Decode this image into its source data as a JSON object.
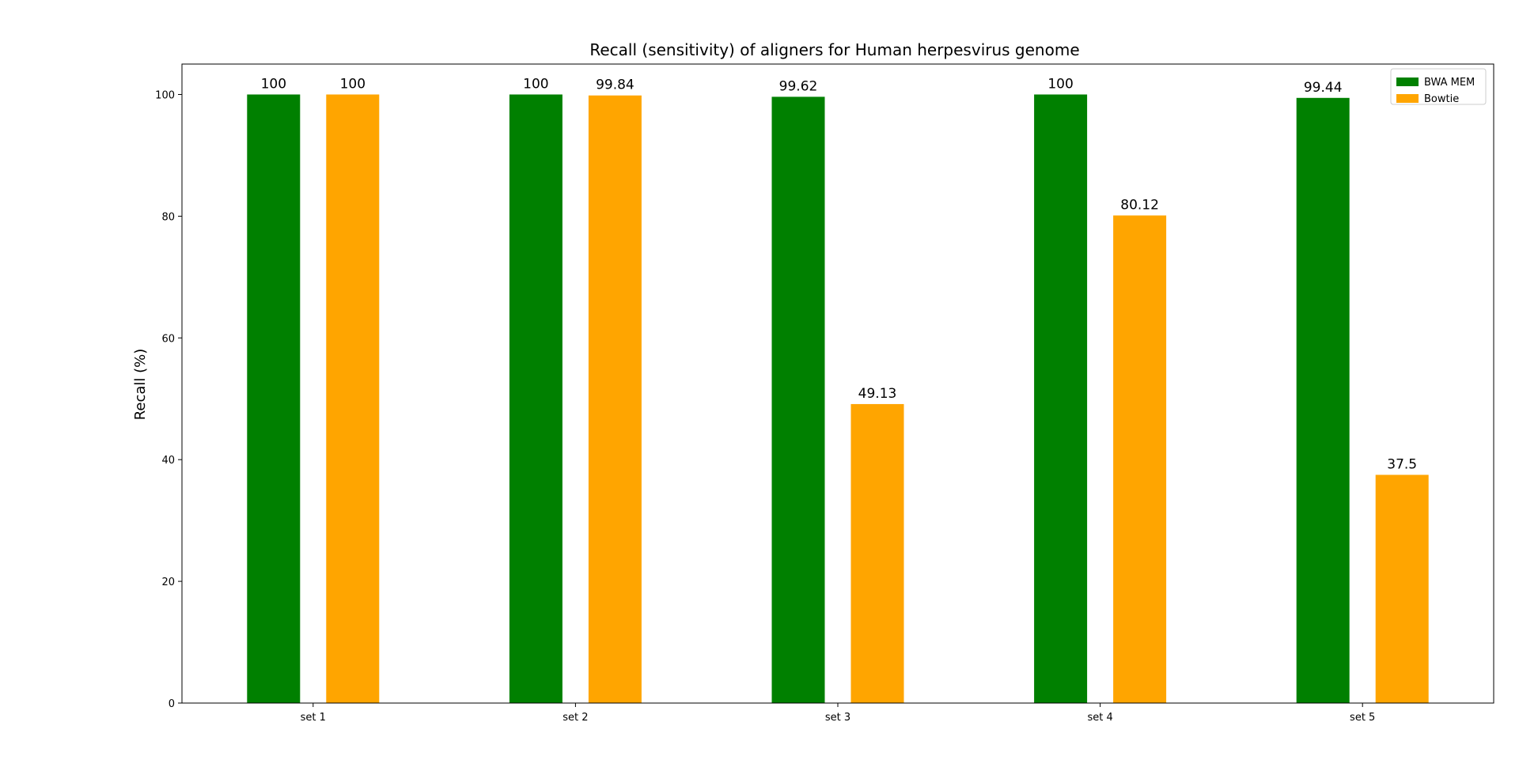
{
  "chart_data": {
    "type": "bar",
    "title": "Recall (sensitivity) of aligners for Human herpesvirus genome",
    "xlabel": "",
    "ylabel": "Recall (%)",
    "categories": [
      "set 1",
      "set 2",
      "set 3",
      "set 4",
      "set 5"
    ],
    "series": [
      {
        "name": "BWA MEM",
        "color": "#008000",
        "values": [
          100,
          100,
          99.62,
          100,
          99.44
        ],
        "labels": [
          "100",
          "100",
          "99.62",
          "100",
          "99.44"
        ]
      },
      {
        "name": "Bowtie",
        "color": "#FFA500",
        "values": [
          100,
          99.84,
          49.13,
          80.12,
          37.5
        ],
        "labels": [
          "100",
          "99.84",
          "49.13",
          "80.12",
          "37.5"
        ]
      }
    ],
    "ylim": [
      0,
      105
    ],
    "yticks": [
      0,
      20,
      40,
      60,
      80,
      100
    ],
    "grid": false,
    "legend_position": "top-right"
  }
}
